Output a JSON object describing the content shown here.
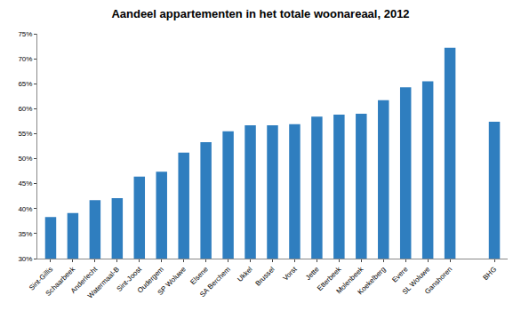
{
  "chart_data": {
    "type": "bar",
    "title": "Aandeel appartementen in het totale woonareaal, 2012",
    "categories": [
      "Sint-Gillis",
      "Schaarbeek",
      "Anderlecht",
      "Watermaal-B",
      "Sint-Joost",
      "Oudergem",
      "SP Woluwe",
      "Elsene",
      "SA Berchem",
      "Ukkel",
      "Brussel",
      "Vorst",
      "Jette",
      "Etterbeek",
      "Molenbeek",
      "Koekelberg",
      "Evere",
      "SL Woluwe",
      "Ganshoren",
      null,
      "BHG"
    ],
    "values": [
      38.3,
      39.1,
      41.7,
      42.1,
      46.4,
      47.4,
      51.2,
      53.3,
      55.5,
      56.7,
      56.7,
      56.9,
      58.4,
      58.8,
      59.0,
      61.7,
      64.3,
      65.5,
      72.2,
      null,
      57.4
    ],
    "color": "#2f7ebf",
    "ylim": [
      30,
      75
    ],
    "yticks": [
      {
        "value": 30,
        "label": "30%"
      },
      {
        "value": 35,
        "label": "35%"
      },
      {
        "value": 40,
        "label": "40%"
      },
      {
        "value": 45,
        "label": "45%"
      },
      {
        "value": 50,
        "label": "50%"
      },
      {
        "value": 55,
        "label": "55%"
      },
      {
        "value": 60,
        "label": "60%"
      },
      {
        "value": 65,
        "label": "65%"
      },
      {
        "value": 70,
        "label": "70%"
      },
      {
        "value": 75,
        "label": "75%"
      }
    ],
    "grid": false
  }
}
